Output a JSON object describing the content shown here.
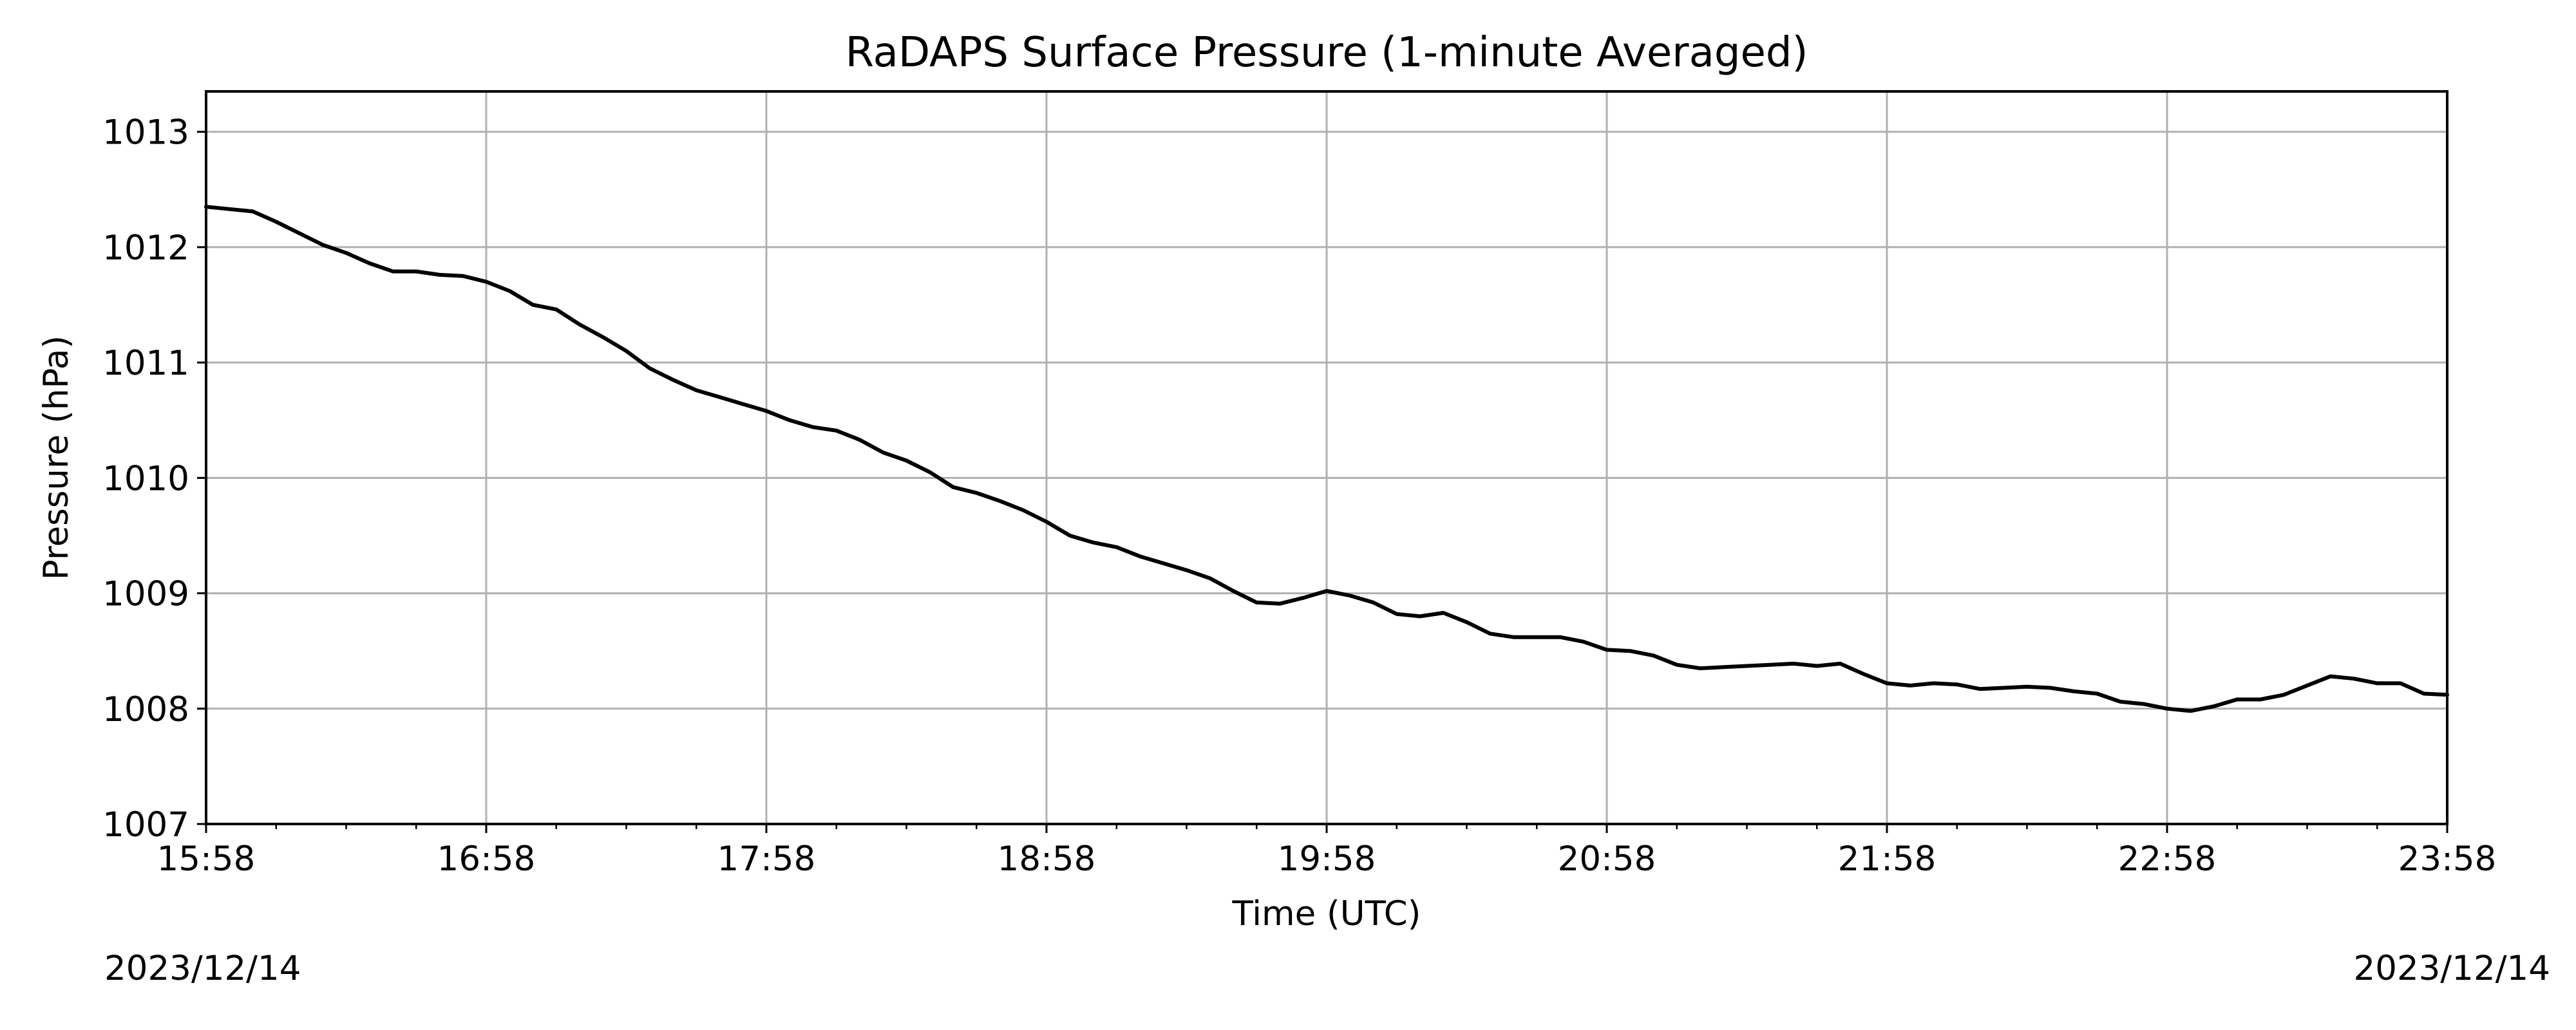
{
  "chart_data": {
    "type": "line",
    "title": "RaDAPS Surface Pressure (1-minute Averaged)",
    "xlabel": "Time (UTC)",
    "ylabel": "Pressure (hPa)",
    "x_ticks": [
      "15:58",
      "16:58",
      "17:58",
      "18:58",
      "19:58",
      "20:58",
      "21:58",
      "22:58",
      "23:58"
    ],
    "y_ticks": [
      1007,
      1008,
      1009,
      1010,
      1011,
      1012,
      1013
    ],
    "xlim": [
      "15:58",
      "23:58"
    ],
    "ylim": [
      1007,
      1013.35
    ],
    "grid": true,
    "series": [
      {
        "color": "#000000",
        "x": [
          "15:58",
          "16:03",
          "16:08",
          "16:13",
          "16:18",
          "16:23",
          "16:28",
          "16:33",
          "16:38",
          "16:43",
          "16:48",
          "16:53",
          "16:58",
          "17:03",
          "17:08",
          "17:13",
          "17:18",
          "17:23",
          "17:28",
          "17:33",
          "17:38",
          "17:43",
          "17:48",
          "17:53",
          "17:58",
          "18:03",
          "18:08",
          "18:13",
          "18:18",
          "18:23",
          "18:28",
          "18:33",
          "18:38",
          "18:43",
          "18:48",
          "18:53",
          "18:58",
          "19:03",
          "19:08",
          "19:13",
          "19:18",
          "19:23",
          "19:28",
          "19:33",
          "19:38",
          "19:43",
          "19:48",
          "19:53",
          "19:58",
          "20:03",
          "20:08",
          "20:13",
          "20:18",
          "20:23",
          "20:28",
          "20:33",
          "20:38",
          "20:43",
          "20:48",
          "20:53",
          "20:58",
          "21:03",
          "21:08",
          "21:13",
          "21:18",
          "21:23",
          "21:28",
          "21:33",
          "21:38",
          "21:43",
          "21:48",
          "21:53",
          "21:58",
          "22:03",
          "22:08",
          "22:13",
          "22:18",
          "22:23",
          "22:28",
          "22:33",
          "22:38",
          "22:43",
          "22:48",
          "22:53",
          "22:58",
          "23:03",
          "23:08",
          "23:13",
          "23:18",
          "23:23",
          "23:28",
          "23:33",
          "23:38",
          "23:43",
          "23:48",
          "23:53",
          "23:58"
        ],
        "y": [
          1012.35,
          1012.33,
          1012.31,
          1012.22,
          1012.12,
          1012.02,
          1011.95,
          1011.86,
          1011.79,
          1011.79,
          1011.76,
          1011.75,
          1011.7,
          1011.62,
          1011.5,
          1011.46,
          1011.33,
          1011.22,
          1011.1,
          1010.95,
          1010.85,
          1010.76,
          1010.7,
          1010.64,
          1010.58,
          1010.5,
          1010.44,
          1010.41,
          1010.33,
          1010.22,
          1010.15,
          1010.05,
          1009.92,
          1009.87,
          1009.8,
          1009.72,
          1009.62,
          1009.5,
          1009.44,
          1009.4,
          1009.32,
          1009.26,
          1009.2,
          1009.13,
          1009.02,
          1008.92,
          1008.91,
          1008.96,
          1009.02,
          1008.98,
          1008.92,
          1008.82,
          1008.8,
          1008.83,
          1008.75,
          1008.65,
          1008.62,
          1008.62,
          1008.62,
          1008.58,
          1008.51,
          1008.5,
          1008.46,
          1008.38,
          1008.35,
          1008.36,
          1008.37,
          1008.38,
          1008.39,
          1008.37,
          1008.39,
          1008.3,
          1008.22,
          1008.2,
          1008.22,
          1008.21,
          1008.17,
          1008.18,
          1008.19,
          1008.18,
          1008.15,
          1008.13,
          1008.06,
          1008.04,
          1008.0,
          1007.98,
          1008.02,
          1008.08,
          1008.08,
          1008.12,
          1008.2,
          1008.28,
          1008.26,
          1008.22,
          1008.22,
          1008.13,
          1008.12
        ]
      }
    ]
  },
  "dates": {
    "left": "2023/12/14",
    "right": "2023/12/14"
  }
}
